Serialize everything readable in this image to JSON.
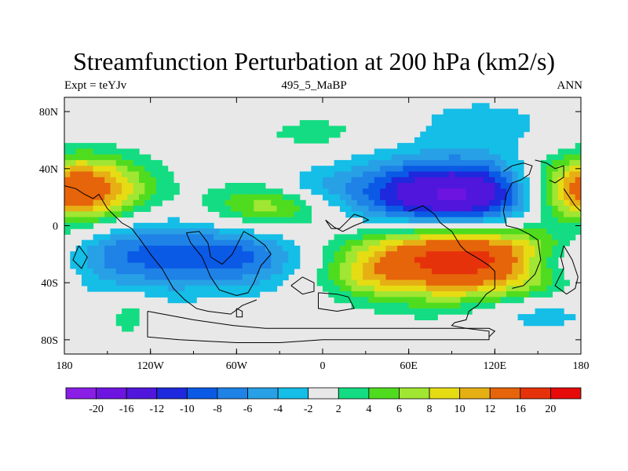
{
  "title": "Streamfunction Perturbation at 200 hPa (km2/s)",
  "subtitle_left": "Expt = teYJv",
  "subtitle_center": "495_5_MaBP",
  "subtitle_right": "ANN",
  "map": {
    "lon_range": [
      -180,
      180
    ],
    "lat_range": [
      -90,
      90
    ],
    "background": "#e8e8e8",
    "lon_ticks": [
      {
        "value": -180,
        "label": "180"
      },
      {
        "value": -120,
        "label": "120W"
      },
      {
        "value": -60,
        "label": "60W"
      },
      {
        "value": 0,
        "label": "0"
      },
      {
        "value": 60,
        "label": "60E"
      },
      {
        "value": 120,
        "label": "120E"
      },
      {
        "value": 180,
        "label": "180"
      }
    ],
    "lat_ticks": [
      {
        "value": 80,
        "label": "80N"
      },
      {
        "value": 40,
        "label": "40N"
      },
      {
        "value": 0,
        "label": "0"
      },
      {
        "value": -40,
        "label": "40S"
      },
      {
        "value": -80,
        "label": "80S"
      }
    ],
    "features": [
      {
        "lon": 95,
        "lat": 16,
        "rlon": 55,
        "rlat": 20,
        "amp": -22,
        "name": "anticyclone-asia-north"
      },
      {
        "lon": 95,
        "lat": -18,
        "rlon": 55,
        "rlat": 22,
        "amp": 22,
        "name": "anticyclone-indian-ocean-south"
      },
      {
        "lon": -160,
        "lat": 24,
        "rlon": 32,
        "rlat": 17,
        "amp": 11,
        "name": "high-north-pacific"
      },
      {
        "lon": 172,
        "lat": 24,
        "rlon": 30,
        "rlat": 17,
        "amp": 11,
        "name": "high-west-pacific"
      },
      {
        "lon": -38,
        "lat": 13,
        "rlon": 30,
        "rlat": 12,
        "amp": 8,
        "name": "high-north-atlantic"
      },
      {
        "lon": -140,
        "lat": -20,
        "rlon": 42,
        "rlat": 20,
        "amp": -9,
        "name": "low-south-pacific"
      },
      {
        "lon": -55,
        "lat": -22,
        "rlon": 35,
        "rlat": 16,
        "amp": -8,
        "name": "low-south-america"
      },
      {
        "lon": 112,
        "lat": 73,
        "rlon": 35,
        "rlat": 12,
        "amp": -3,
        "name": "low-arctic"
      },
      {
        "lon": -5,
        "lat": 65,
        "rlon": 30,
        "rlat": 9,
        "amp": 3,
        "name": "high-north-europe"
      },
      {
        "lon": -135,
        "lat": -62,
        "rlon": 12,
        "rlat": 12,
        "amp": 3.5,
        "name": "high-south-pacific"
      },
      {
        "lon": 30,
        "lat": -36,
        "rlon": 20,
        "rlat": 9,
        "amp": 3,
        "name": "high-south-africa"
      },
      {
        "lon": 160,
        "lat": -25,
        "rlon": 18,
        "rlat": 7,
        "amp": -3,
        "name": "low-coral-sea"
      },
      {
        "lon": 145,
        "lat": -62,
        "rlon": 30,
        "rlat": 9,
        "amp": -4,
        "name": "low-southern-ocean"
      },
      {
        "lon": -10,
        "lat": 28,
        "rlon": 20,
        "rlat": 7,
        "amp": -2.5,
        "name": "low-north-africa"
      }
    ],
    "levels": [
      -20,
      -16,
      -12,
      -10,
      -8,
      -6,
      -4,
      -2,
      2,
      4,
      6,
      8,
      10,
      12,
      16,
      20
    ],
    "colors": [
      "#8b1ee6",
      "#6e14e1",
      "#5016dc",
      "#1e28dc",
      "#0a5ae6",
      "#1e82e6",
      "#28a0e6",
      "#14bee6",
      "#e8e8e8",
      "#14dc82",
      "#50dc1e",
      "#a0e632",
      "#e6dc14",
      "#e6af14",
      "#e6640a",
      "#e6320a",
      "#e60a0a"
    ],
    "coastlines": [
      [
        [
          -180,
          28
        ],
        [
          -172,
          26
        ],
        [
          -166,
          22
        ],
        [
          -160,
          19
        ],
        [
          -156,
          22
        ],
        [
          -150,
          12
        ],
        [
          -140,
          2
        ],
        [
          -133,
          -2
        ],
        [
          -127,
          -10
        ],
        [
          -120,
          -20
        ],
        [
          -112,
          -30
        ],
        [
          -104,
          -44
        ],
        [
          -96,
          -52
        ],
        [
          -88,
          -58
        ],
        [
          -80,
          -60
        ],
        [
          -64,
          -62
        ],
        [
          -56,
          -56
        ],
        [
          -46,
          -52
        ]
      ],
      [
        [
          -95,
          -5
        ],
        [
          -86,
          -4
        ],
        [
          -80,
          -12
        ],
        [
          -78,
          -22
        ],
        [
          -70,
          -27
        ],
        [
          -63,
          -20
        ],
        [
          -55,
          -4
        ],
        [
          -48,
          -8
        ],
        [
          -40,
          -14
        ],
        [
          -36,
          -20
        ],
        [
          -43,
          -28
        ],
        [
          -48,
          -40
        ],
        [
          -52,
          -47
        ],
        [
          -60,
          -49
        ],
        [
          -72,
          -45
        ],
        [
          -78,
          -36
        ],
        [
          -84,
          -22
        ],
        [
          -92,
          -12
        ],
        [
          -95,
          -5
        ]
      ],
      [
        [
          -60,
          -58
        ],
        [
          -56,
          -60
        ],
        [
          -56,
          -64
        ],
        [
          -60,
          -64
        ],
        [
          -60,
          -58
        ]
      ],
      [
        [
          -122,
          -60
        ],
        [
          -90,
          -66
        ],
        [
          -62,
          -70
        ],
        [
          -40,
          -72
        ],
        [
          -20,
          -72
        ],
        [
          0,
          -72
        ],
        [
          20,
          -72
        ],
        [
          40,
          -72
        ],
        [
          60,
          -72
        ],
        [
          80,
          -72
        ],
        [
          100,
          -72
        ],
        [
          116,
          -74
        ],
        [
          116,
          -80
        ],
        [
          90,
          -80
        ],
        [
          60,
          -80
        ],
        [
          30,
          -80
        ],
        [
          0,
          -80
        ],
        [
          -30,
          -82
        ],
        [
          -60,
          -82
        ],
        [
          -100,
          -80
        ],
        [
          -122,
          -78
        ],
        [
          -122,
          -60
        ]
      ],
      [
        [
          2,
          4
        ],
        [
          6,
          -2
        ],
        [
          12,
          -2
        ],
        [
          18,
          4
        ],
        [
          22,
          8
        ],
        [
          28,
          6
        ],
        [
          32,
          4
        ],
        [
          22,
          0
        ],
        [
          14,
          -4
        ],
        [
          8,
          -1
        ],
        [
          2,
          4
        ]
      ],
      [
        [
          -22,
          -42
        ],
        [
          -14,
          -36
        ],
        [
          -6,
          -40
        ],
        [
          -6,
          -46
        ],
        [
          -14,
          -48
        ],
        [
          -22,
          -42
        ]
      ],
      [
        [
          -3,
          -47
        ],
        [
          10,
          -48
        ],
        [
          18,
          -50
        ],
        [
          22,
          -58
        ],
        [
          10,
          -60
        ],
        [
          -3,
          -58
        ],
        [
          -3,
          -47
        ]
      ],
      [
        [
          60,
          10
        ],
        [
          70,
          14
        ],
        [
          78,
          8
        ],
        [
          82,
          2
        ],
        [
          90,
          -4
        ],
        [
          96,
          -14
        ],
        [
          100,
          -18
        ],
        [
          110,
          -24
        ],
        [
          116,
          -28
        ],
        [
          120,
          -32
        ],
        [
          120,
          -44
        ],
        [
          114,
          -48
        ],
        [
          108,
          -56
        ],
        [
          102,
          -60
        ],
        [
          100,
          -66
        ],
        [
          92,
          -68
        ],
        [
          90,
          -70
        ],
        [
          100,
          -72
        ],
        [
          116,
          -72
        ],
        [
          120,
          -74
        ],
        [
          116,
          -78
        ]
      ],
      [
        [
          126,
          38
        ],
        [
          132,
          42
        ],
        [
          140,
          44
        ],
        [
          146,
          42
        ],
        [
          144,
          36
        ],
        [
          138,
          32
        ],
        [
          132,
          30
        ],
        [
          128,
          22
        ],
        [
          126,
          10
        ],
        [
          128,
          0
        ],
        [
          136,
          -2
        ],
        [
          144,
          -6
        ],
        [
          150,
          -10
        ],
        [
          152,
          -24
        ],
        [
          148,
          -34
        ],
        [
          140,
          -42
        ],
        [
          132,
          -44
        ]
      ],
      [
        [
          148,
          46
        ],
        [
          156,
          44
        ],
        [
          162,
          40
        ],
        [
          168,
          42
        ],
        [
          168,
          34
        ],
        [
          162,
          30
        ],
        [
          158,
          32
        ]
      ],
      [
        [
          168,
          26
        ],
        [
          172,
          20
        ],
        [
          176,
          14
        ],
        [
          180,
          10
        ]
      ],
      [
        [
          168,
          -14
        ],
        [
          174,
          -24
        ],
        [
          178,
          -36
        ],
        [
          176,
          -44
        ],
        [
          170,
          -48
        ],
        [
          162,
          -42
        ],
        [
          168,
          -30
        ],
        [
          166,
          -22
        ],
        [
          168,
          -14
        ]
      ],
      [
        [
          -170,
          -14
        ],
        [
          -164,
          -22
        ],
        [
          -168,
          -30
        ],
        [
          -174,
          -24
        ],
        [
          -170,
          -14
        ]
      ]
    ]
  }
}
